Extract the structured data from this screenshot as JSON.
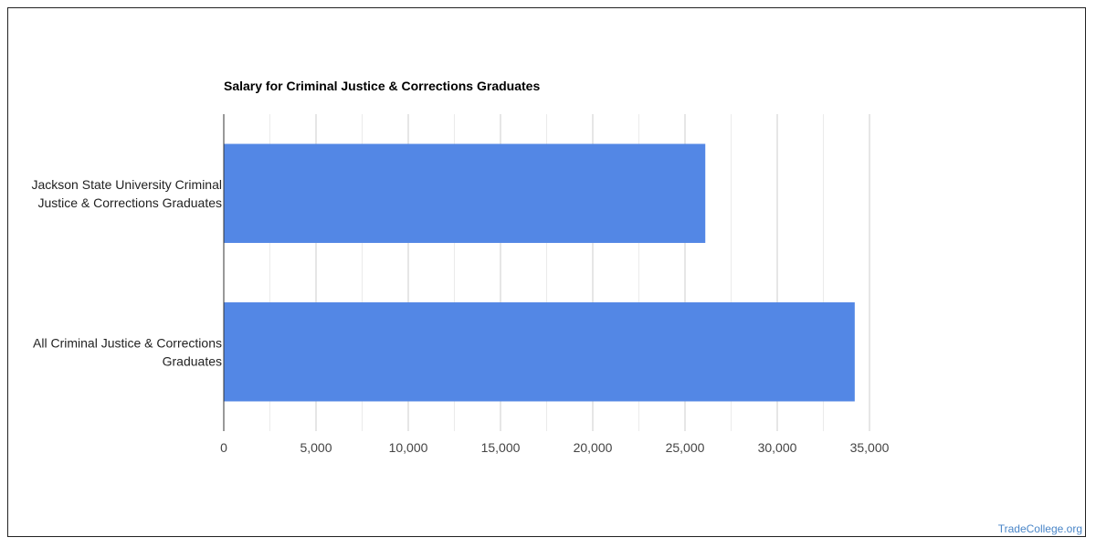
{
  "chart_data": {
    "type": "bar",
    "orientation": "horizontal",
    "title": "Salary for Criminal Justice & Corrections Graduates",
    "categories": [
      [
        "Jackson State University Criminal",
        "Justice & Corrections Graduates"
      ],
      [
        "All Criminal Justice & Corrections",
        "Graduates"
      ]
    ],
    "series": [
      {
        "values": [
          26100,
          34200
        ],
        "color": "#5387e5"
      }
    ],
    "xlim": [
      0,
      35000
    ],
    "major_ticks": [
      0,
      5000,
      10000,
      15000,
      20000,
      25000,
      30000,
      35000
    ],
    "tick_labels": [
      "0",
      "5,000",
      "10,000",
      "15,000",
      "20,000",
      "25,000",
      "30,000",
      "35,000"
    ],
    "minor_gridlines": true,
    "grid": true,
    "legend": "none"
  },
  "watermark": "TradeCollege.org"
}
